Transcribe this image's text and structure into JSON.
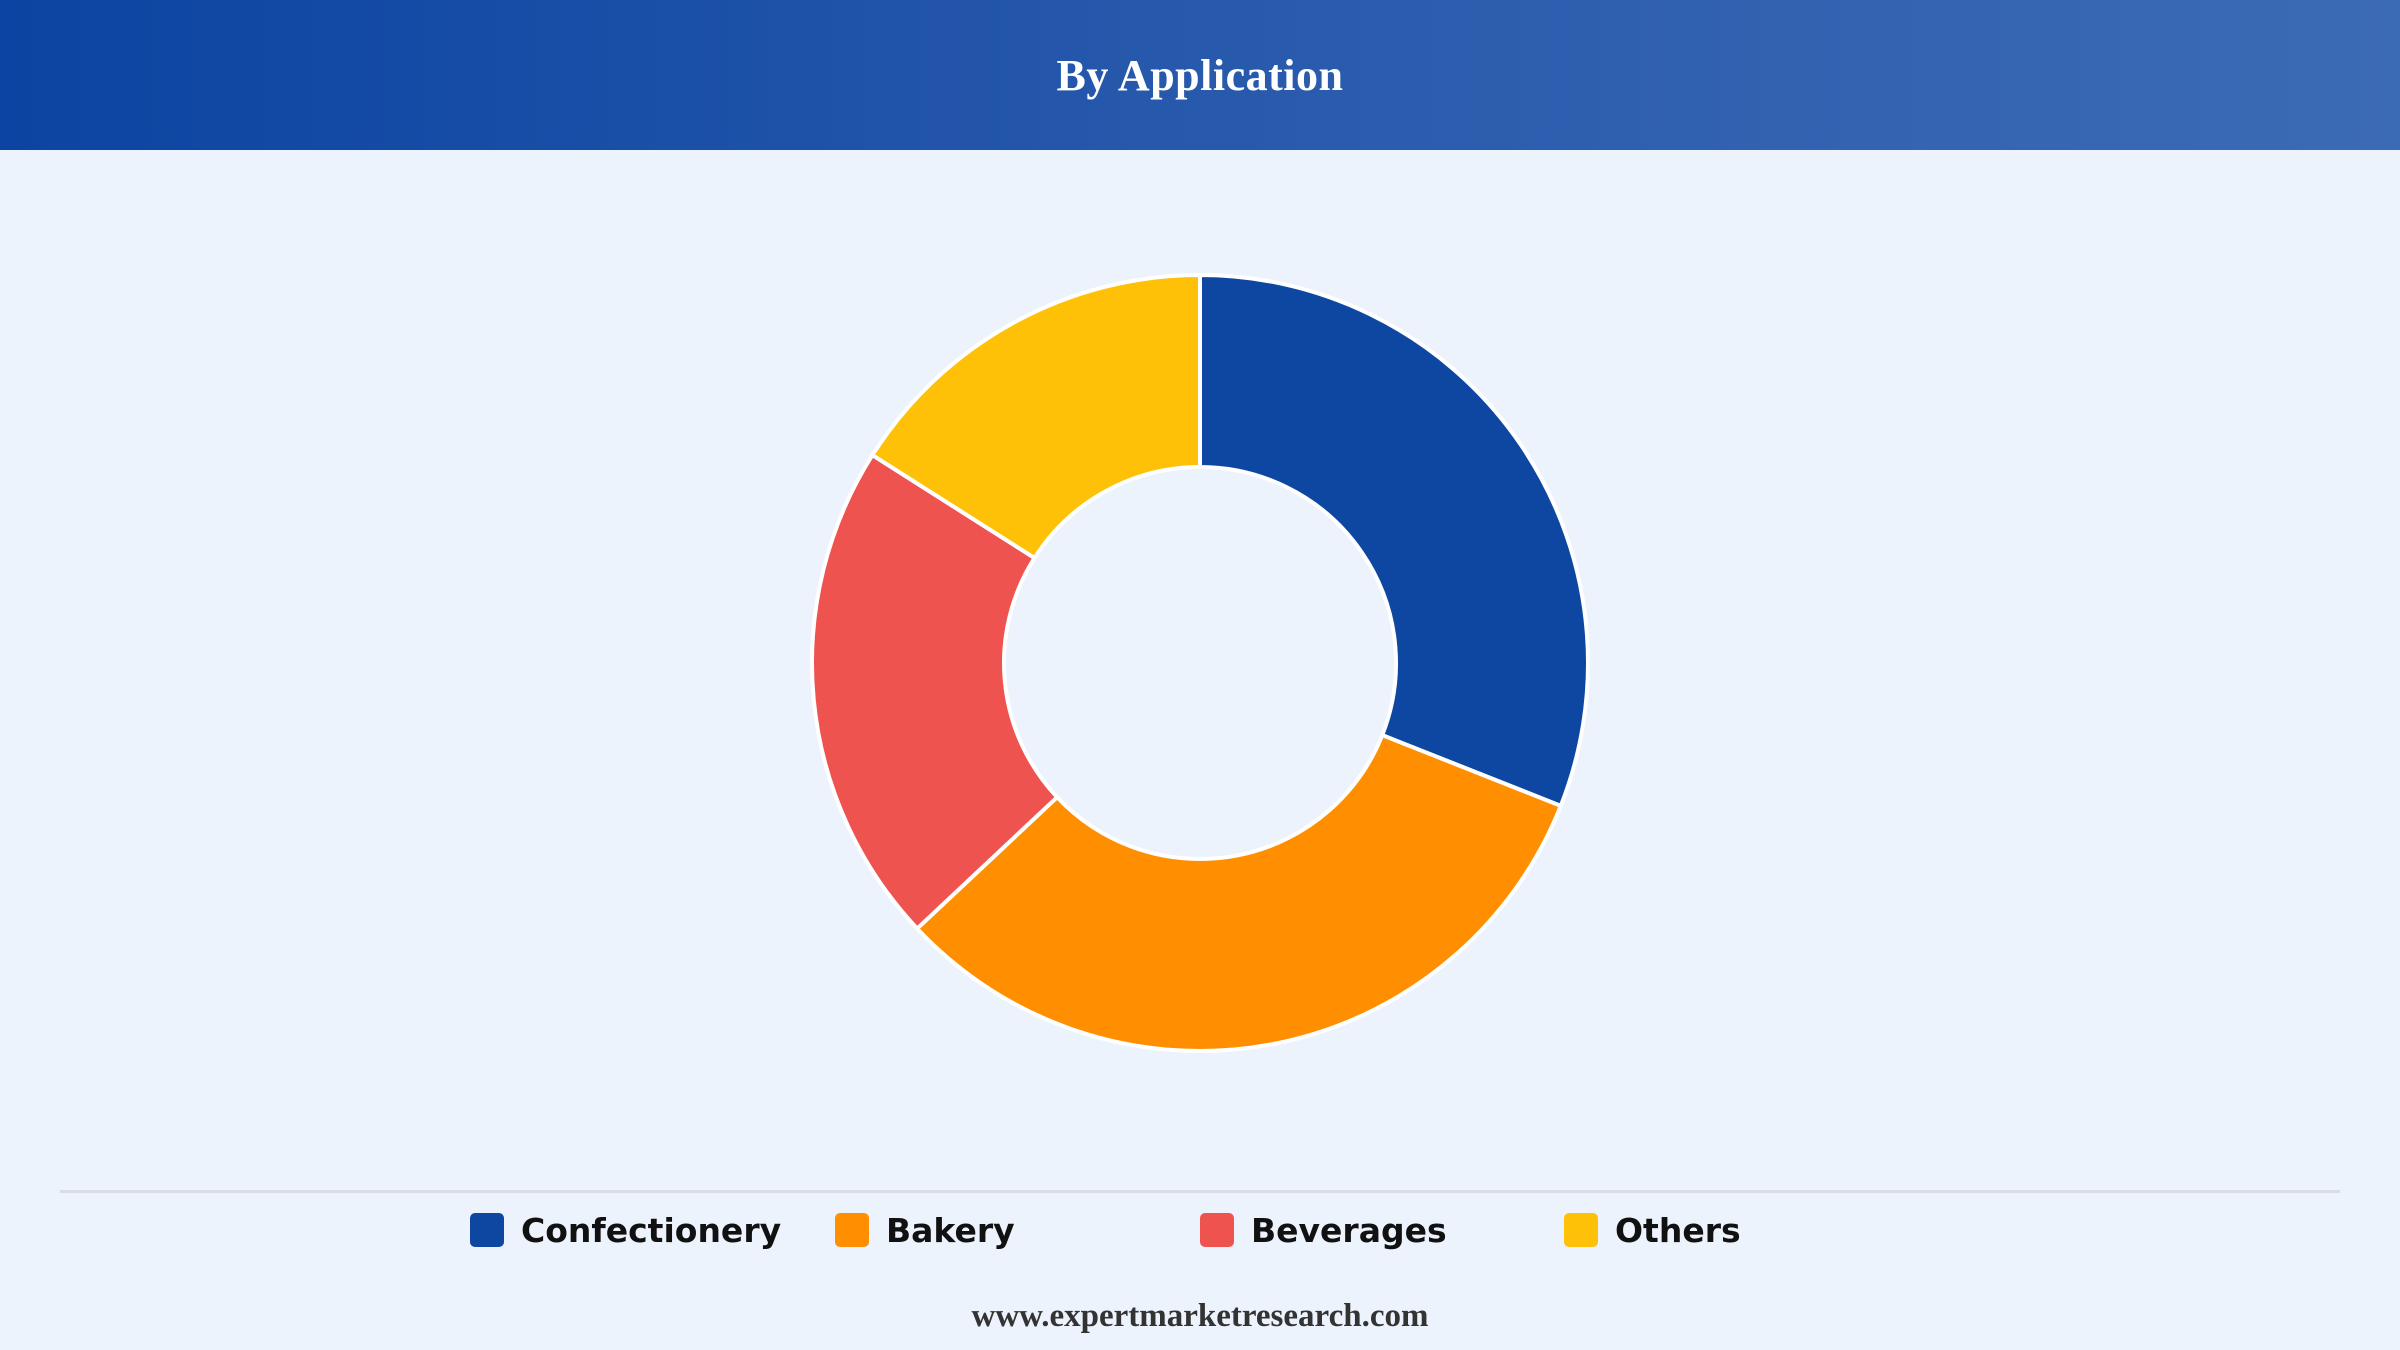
{
  "header": {
    "title": "By Application"
  },
  "footer": {
    "url": "www.expertmarketresearch.com"
  },
  "chart_data": {
    "type": "pie",
    "style": "donut",
    "title": "By Application",
    "categories": [
      "Confectionery",
      "Bakery",
      "Beverages",
      "Others"
    ],
    "values": [
      31,
      32,
      21,
      16
    ],
    "unit": "%",
    "colors": [
      "#0d47a1",
      "#ff8f00",
      "#ef5350",
      "#ffc107"
    ],
    "start_angle_deg": 0,
    "direction": "clockwise",
    "legend_position": "bottom",
    "data_labels": false
  }
}
